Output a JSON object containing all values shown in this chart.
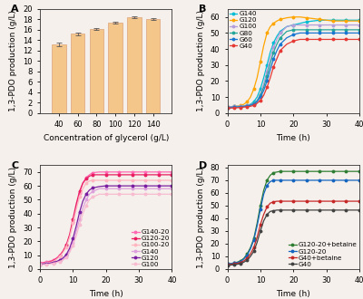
{
  "panel_A": {
    "x": [
      40,
      60,
      80,
      100,
      120,
      140
    ],
    "y": [
      13.2,
      15.2,
      16.1,
      17.4,
      18.4,
      18.1
    ],
    "yerr": [
      0.3,
      0.3,
      0.2,
      0.2,
      0.2,
      0.2
    ],
    "bar_color": "#f5c68a",
    "bar_edge_color": "#d4956a",
    "xlabel": "Concentration of glycerol (g/L)",
    "ylabel": "1,3-PDO production (g/L)",
    "xlim": [
      20,
      160
    ],
    "ylim": [
      0,
      20
    ],
    "yticks": [
      0,
      2,
      4,
      6,
      8,
      10,
      12,
      14,
      16,
      18,
      20
    ],
    "label": "A"
  },
  "panel_B": {
    "time": [
      0,
      1,
      2,
      3,
      4,
      5,
      6,
      7,
      8,
      9,
      10,
      11,
      12,
      13,
      14,
      15,
      16,
      18,
      20,
      22,
      24,
      26,
      28,
      30,
      32,
      34,
      36,
      38,
      40
    ],
    "series": {
      "G140": {
        "color": "#00bcd4",
        "values": [
          4,
          4.0,
          4.1,
          4.2,
          4.3,
          4.5,
          4.8,
          5.5,
          7,
          10,
          15,
          22,
          30,
          38,
          44,
          48,
          51,
          54,
          55,
          56,
          57,
          57.5,
          58,
          58,
          58,
          58,
          58,
          58,
          58
        ]
      },
      "G120": {
        "color": "#ffa500",
        "values": [
          4,
          4.0,
          4.1,
          4.3,
          4.7,
          5.5,
          7,
          10,
          15,
          22,
          32,
          42,
          50,
          54,
          56,
          57.5,
          58.5,
          59.5,
          60,
          60,
          59.5,
          59,
          58.5,
          58,
          57.5,
          57.5,
          57.5,
          57.5,
          57.5
        ]
      },
      "G100": {
        "color": "#b39ddb",
        "values": [
          4,
          4.0,
          4.1,
          4.2,
          4.3,
          4.5,
          4.8,
          5.2,
          6,
          8,
          12,
          18,
          26,
          34,
          41,
          46,
          50,
          54,
          55,
          55,
          55,
          55,
          55,
          55,
          55,
          55,
          55,
          55,
          55
        ]
      },
      "G80": {
        "color": "#26a69a",
        "values": [
          3.5,
          3.6,
          3.7,
          3.8,
          4.0,
          4.2,
          4.5,
          5.0,
          5.8,
          7.5,
          11,
          16,
          23,
          31,
          38,
          43,
          47,
          51,
          52,
          52,
          52,
          52,
          52,
          52,
          52,
          52,
          52,
          52,
          52
        ]
      },
      "G60": {
        "color": "#1976d2",
        "values": [
          3.5,
          3.5,
          3.6,
          3.7,
          3.9,
          4.1,
          4.4,
          4.8,
          5.5,
          7,
          10,
          14,
          20,
          27,
          34,
          39,
          43,
          47,
          49,
          50,
          50,
          50,
          50,
          50,
          50,
          50,
          50,
          50,
          50
        ]
      },
      "G40": {
        "color": "#e53935",
        "values": [
          3,
          3.1,
          3.2,
          3.3,
          3.5,
          3.7,
          3.9,
          4.2,
          4.8,
          6,
          8,
          11,
          16,
          22,
          29,
          34,
          39,
          43,
          45,
          46,
          46,
          46,
          46,
          46,
          46,
          46,
          46,
          46,
          46
        ]
      }
    },
    "xlabel": "Time (h)",
    "ylabel": "1,3-PDO production (g/L)",
    "ylim": [
      0,
      65
    ],
    "yticks": [
      0,
      10,
      20,
      30,
      40,
      50,
      60
    ],
    "label": "B"
  },
  "panel_C": {
    "time": [
      0,
      1,
      2,
      3,
      4,
      5,
      6,
      7,
      8,
      9,
      10,
      11,
      12,
      13,
      14,
      15,
      16,
      18,
      20,
      22,
      24,
      26,
      28,
      30,
      32,
      34,
      36,
      38,
      40
    ],
    "series": {
      "G140-20": {
        "color": "#ff69b4",
        "values": [
          4.5,
          4.8,
          5.2,
          5.8,
          6.5,
          8,
          10,
          13,
          17,
          24,
          34,
          45,
          55,
          62,
          66,
          68,
          69.5,
          70,
          70,
          70,
          70,
          70,
          70,
          70,
          70,
          70,
          70,
          70,
          70
        ]
      },
      "G120-20": {
        "color": "#e91e63",
        "values": [
          4,
          4.3,
          4.7,
          5.2,
          6,
          7.5,
          9.5,
          13,
          17.5,
          25,
          36,
          47,
          56,
          62,
          65,
          67,
          68,
          68,
          68,
          68,
          68,
          68,
          68,
          68,
          68,
          68,
          68,
          68,
          68
        ]
      },
      "G100-20": {
        "color": "#ffb6c1",
        "values": [
          3.8,
          4.0,
          4.3,
          4.8,
          5.5,
          7,
          9,
          12,
          16,
          23,
          33,
          43,
          52,
          58,
          62,
          63.5,
          64,
          64,
          64,
          64,
          64,
          64,
          64,
          64,
          64,
          64,
          64,
          64,
          64
        ]
      },
      "G140": {
        "color": "#dda0dd",
        "values": [
          3.5,
          3.7,
          3.9,
          4.2,
          4.5,
          5,
          5.8,
          7,
          9,
          13,
          19,
          27,
          36,
          44,
          50,
          54,
          56,
          58,
          58,
          58,
          58,
          58,
          58,
          58,
          58,
          58,
          58,
          58,
          58
        ]
      },
      "G120": {
        "color": "#7b1fa2",
        "values": [
          3.5,
          3.7,
          4.0,
          4.3,
          4.8,
          5.5,
          6.5,
          8,
          10.5,
          15,
          22,
          31,
          41,
          49,
          54,
          57,
          58.5,
          59.5,
          60,
          60,
          60,
          60,
          60,
          60,
          60,
          60,
          60,
          60,
          60
        ]
      },
      "G100": {
        "color": "#f8bbd0",
        "values": [
          3,
          3.2,
          3.4,
          3.7,
          4.1,
          4.7,
          5.5,
          6.5,
          8.5,
          12,
          17,
          24,
          32,
          40,
          46,
          50,
          52,
          54,
          54,
          54,
          54,
          54,
          54,
          54,
          54,
          54,
          54,
          54,
          54
        ]
      }
    },
    "xlabel": "Time (h)",
    "ylabel": "1,3-PDO production (g/L)",
    "ylim": [
      0,
      75
    ],
    "yticks": [
      0,
      10,
      20,
      30,
      40,
      50,
      60,
      70
    ],
    "label": "C"
  },
  "panel_D": {
    "time": [
      0,
      1,
      2,
      3,
      4,
      5,
      6,
      7,
      8,
      9,
      10,
      11,
      12,
      13,
      14,
      15,
      16,
      18,
      20,
      22,
      24,
      26,
      28,
      30,
      32,
      34,
      36,
      38,
      40
    ],
    "series": {
      "G120-20+betaine": {
        "color": "#2e7d32",
        "values": [
          4,
          4.3,
          4.8,
          5.5,
          6.5,
          8.5,
          12,
          17,
          24,
          36,
          50,
          62,
          70,
          74,
          76,
          76.5,
          77,
          77,
          77,
          77,
          77,
          77,
          77,
          77,
          77,
          77,
          77,
          77,
          77
        ]
      },
      "G120-20": {
        "color": "#1565c0",
        "values": [
          4,
          4.3,
          4.7,
          5.2,
          6,
          8,
          11,
          16,
          23,
          34,
          47,
          59,
          66,
          69,
          70,
          70,
          70,
          70,
          70,
          70,
          70,
          70,
          70,
          70,
          70,
          70,
          70,
          70,
          70
        ]
      },
      "G40+betaine": {
        "color": "#c62828",
        "values": [
          3.5,
          3.7,
          4.0,
          4.5,
          5.2,
          6.5,
          8.5,
          12,
          17,
          25,
          35,
          43,
          49,
          52,
          53,
          53.5,
          53.5,
          53.5,
          53.5,
          53.5,
          53.5,
          53.5,
          53.5,
          53.5,
          53.5,
          53.5,
          53.5,
          53.5,
          53.5
        ]
      },
      "G40": {
        "color": "#424242",
        "values": [
          3,
          3.2,
          3.5,
          3.8,
          4.3,
          5.5,
          7,
          10,
          14,
          21,
          30,
          38,
          43,
          45.5,
          46,
          46.5,
          46.5,
          46.5,
          46.5,
          46.5,
          46.5,
          46.5,
          46.5,
          46.5,
          46.5,
          46.5,
          46.5,
          46.5,
          46.5
        ]
      }
    },
    "xlabel": "Time (h)",
    "ylabel": "1,3-PDO production (g/L)",
    "ylim": [
      0,
      82
    ],
    "yticks": [
      0,
      10,
      20,
      30,
      40,
      50,
      60,
      70,
      80
    ],
    "label": "D"
  },
  "figure_bg": "#f5f0eb",
  "axis_bg": "#f5f0eb",
  "tick_labelsize": 6,
  "axis_labelsize": 6.5,
  "legend_fontsize": 5.2,
  "marker": "o",
  "markersize": 1.8,
  "linewidth": 0.9
}
